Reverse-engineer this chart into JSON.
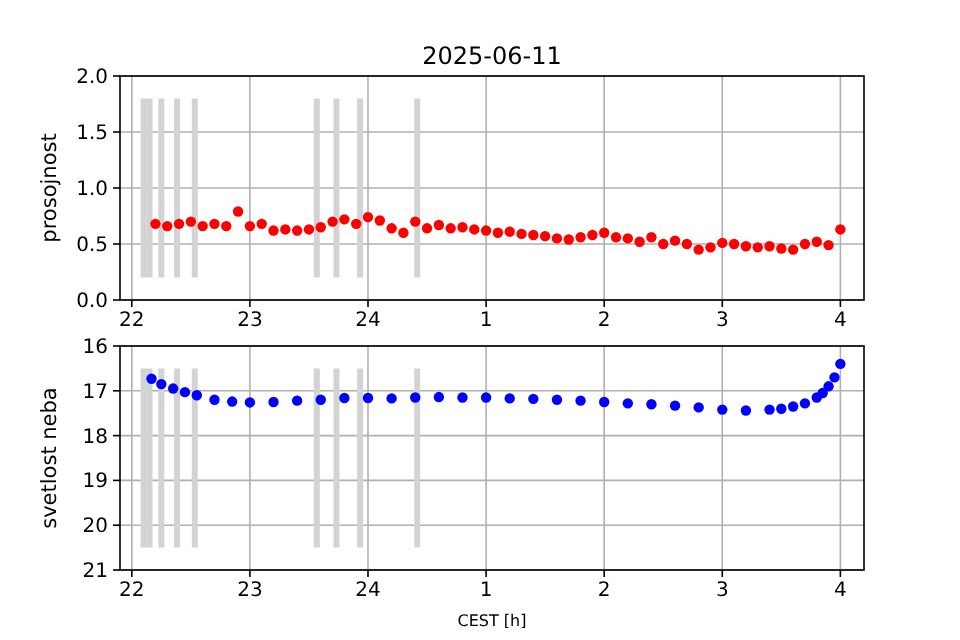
{
  "chart_data": [
    {
      "type": "scatter",
      "title": "2025-06-11",
      "ylabel": "prosojnost",
      "marker": "circle",
      "grid": true,
      "xlim": [
        "2025-06-10T21:54",
        "2025-06-11T04:12"
      ],
      "ylim": [
        0,
        2
      ],
      "xticks": [
        {
          "value": "2025-06-10T22:00",
          "label": "22"
        },
        {
          "value": "2025-06-10T23:00",
          "label": "23"
        },
        {
          "value": "2025-06-11T00:00",
          "label": "24"
        },
        {
          "value": "2025-06-11T01:00",
          "label": "1"
        },
        {
          "value": "2025-06-11T02:00",
          "label": "2"
        },
        {
          "value": "2025-06-11T03:00",
          "label": "3"
        },
        {
          "value": "2025-06-11T04:00",
          "label": "4"
        }
      ],
      "yticks": [
        {
          "value": 0,
          "label": "0.0"
        },
        {
          "value": 0.5,
          "label": "0.5"
        },
        {
          "value": 1,
          "label": "1.0"
        },
        {
          "value": 1.5,
          "label": "1.5"
        },
        {
          "value": 2,
          "label": "2.0"
        }
      ],
      "ref_lines": [
        {
          "axis": "x",
          "value": "2025-06-10T22:06",
          "color": "#d3d3d3"
        },
        {
          "axis": "x",
          "value": "2025-06-10T22:09",
          "color": "#d3d3d3"
        },
        {
          "axis": "x",
          "value": "2025-06-10T22:15",
          "color": "#d3d3d3"
        },
        {
          "axis": "x",
          "value": "2025-06-10T22:23",
          "color": "#d3d3d3"
        },
        {
          "axis": "x",
          "value": "2025-06-10T22:32",
          "color": "#d3d3d3"
        },
        {
          "axis": "x",
          "value": "2025-06-10T23:34",
          "color": "#d3d3d3"
        },
        {
          "axis": "x",
          "value": "2025-06-10T23:44",
          "color": "#d3d3d3"
        },
        {
          "axis": "x",
          "value": "2025-06-10T23:56",
          "color": "#d3d3d3"
        },
        {
          "axis": "x",
          "value": "2025-06-11T00:25",
          "color": "#d3d3d3"
        }
      ],
      "series": [
        {
          "color": "#ff0000",
          "x": [
            "2025-06-10T22:12",
            "2025-06-10T22:18",
            "2025-06-10T22:24",
            "2025-06-10T22:30",
            "2025-06-10T22:36",
            "2025-06-10T22:42",
            "2025-06-10T22:48",
            "2025-06-10T22:54",
            "2025-06-10T23:00",
            "2025-06-10T23:06",
            "2025-06-10T23:12",
            "2025-06-10T23:18",
            "2025-06-10T23:24",
            "2025-06-10T23:30",
            "2025-06-10T23:36",
            "2025-06-10T23:42",
            "2025-06-10T23:48",
            "2025-06-10T23:54",
            "2025-06-11T00:00",
            "2025-06-11T00:06",
            "2025-06-11T00:12",
            "2025-06-11T00:18",
            "2025-06-11T00:24",
            "2025-06-11T00:30",
            "2025-06-11T00:36",
            "2025-06-11T00:42",
            "2025-06-11T00:48",
            "2025-06-11T00:54",
            "2025-06-11T01:00",
            "2025-06-11T01:06",
            "2025-06-11T01:12",
            "2025-06-11T01:18",
            "2025-06-11T01:24",
            "2025-06-11T01:30",
            "2025-06-11T01:36",
            "2025-06-11T01:42",
            "2025-06-11T01:48",
            "2025-06-11T01:54",
            "2025-06-11T02:00",
            "2025-06-11T02:06",
            "2025-06-11T02:12",
            "2025-06-11T02:18",
            "2025-06-11T02:24",
            "2025-06-11T02:30",
            "2025-06-11T02:36",
            "2025-06-11T02:42",
            "2025-06-11T02:48",
            "2025-06-11T02:54",
            "2025-06-11T03:00",
            "2025-06-11T03:06",
            "2025-06-11T03:12",
            "2025-06-11T03:18",
            "2025-06-11T03:24",
            "2025-06-11T03:30",
            "2025-06-11T03:36",
            "2025-06-11T03:42",
            "2025-06-11T03:48",
            "2025-06-11T03:54",
            "2025-06-11T04:00"
          ],
          "values": [
            0.68,
            0.66,
            0.68,
            0.7,
            0.66,
            0.68,
            0.66,
            0.79,
            0.66,
            0.68,
            0.62,
            0.63,
            0.62,
            0.63,
            0.65,
            0.7,
            0.72,
            0.68,
            0.74,
            0.71,
            0.64,
            0.6,
            0.7,
            0.64,
            0.67,
            0.64,
            0.65,
            0.63,
            0.62,
            0.6,
            0.61,
            0.59,
            0.58,
            0.57,
            0.55,
            0.54,
            0.56,
            0.58,
            0.6,
            0.56,
            0.55,
            0.52,
            0.56,
            0.5,
            0.53,
            0.5,
            0.45,
            0.47,
            0.51,
            0.5,
            0.48,
            0.47,
            0.48,
            0.46,
            0.45,
            0.5,
            0.52,
            0.49,
            0.63
          ]
        }
      ]
    },
    {
      "type": "scatter",
      "xlabel": "CEST [h]",
      "ylabel": "svetlost neba",
      "marker": "circle",
      "grid": true,
      "xlim": [
        "2025-06-10T21:54",
        "2025-06-11T04:12"
      ],
      "ylim": [
        21,
        16
      ],
      "xticks": [
        {
          "value": "2025-06-10T22:00",
          "label": "22"
        },
        {
          "value": "2025-06-10T23:00",
          "label": "23"
        },
        {
          "value": "2025-06-11T00:00",
          "label": "24"
        },
        {
          "value": "2025-06-11T01:00",
          "label": "1"
        },
        {
          "value": "2025-06-11T02:00",
          "label": "2"
        },
        {
          "value": "2025-06-11T03:00",
          "label": "3"
        },
        {
          "value": "2025-06-11T04:00",
          "label": "4"
        }
      ],
      "yticks": [
        16,
        17,
        18,
        19,
        20,
        21
      ],
      "ref_lines": [
        {
          "axis": "x",
          "value": "2025-06-10T22:06",
          "color": "#d3d3d3"
        },
        {
          "axis": "x",
          "value": "2025-06-10T22:09",
          "color": "#d3d3d3"
        },
        {
          "axis": "x",
          "value": "2025-06-10T22:15",
          "color": "#d3d3d3"
        },
        {
          "axis": "x",
          "value": "2025-06-10T22:23",
          "color": "#d3d3d3"
        },
        {
          "axis": "x",
          "value": "2025-06-10T22:32",
          "color": "#d3d3d3"
        },
        {
          "axis": "x",
          "value": "2025-06-10T23:34",
          "color": "#d3d3d3"
        },
        {
          "axis": "x",
          "value": "2025-06-10T23:44",
          "color": "#d3d3d3"
        },
        {
          "axis": "x",
          "value": "2025-06-10T23:56",
          "color": "#d3d3d3"
        },
        {
          "axis": "x",
          "value": "2025-06-11T00:25",
          "color": "#d3d3d3"
        }
      ],
      "series": [
        {
          "color": "#0000ff",
          "x": [
            "2025-06-10T22:10",
            "2025-06-10T22:15",
            "2025-06-10T22:21",
            "2025-06-10T22:27",
            "2025-06-10T22:33",
            "2025-06-10T22:42",
            "2025-06-10T22:51",
            "2025-06-10T23:00",
            "2025-06-10T23:12",
            "2025-06-10T23:24",
            "2025-06-10T23:36",
            "2025-06-10T23:48",
            "2025-06-11T00:00",
            "2025-06-11T00:12",
            "2025-06-11T00:24",
            "2025-06-11T00:36",
            "2025-06-11T00:48",
            "2025-06-11T01:00",
            "2025-06-11T01:12",
            "2025-06-11T01:24",
            "2025-06-11T01:36",
            "2025-06-11T01:48",
            "2025-06-11T02:00",
            "2025-06-11T02:12",
            "2025-06-11T02:24",
            "2025-06-11T02:36",
            "2025-06-11T02:48",
            "2025-06-11T03:00",
            "2025-06-11T03:12",
            "2025-06-11T03:24",
            "2025-06-11T03:30",
            "2025-06-11T03:36",
            "2025-06-11T03:42",
            "2025-06-11T03:48",
            "2025-06-11T03:51",
            "2025-06-11T03:54",
            "2025-06-11T03:57",
            "2025-06-11T04:00"
          ],
          "values": [
            16.73,
            16.85,
            16.95,
            17.03,
            17.1,
            17.2,
            17.24,
            17.26,
            17.25,
            17.22,
            17.2,
            17.16,
            17.16,
            17.17,
            17.15,
            17.14,
            17.15,
            17.15,
            17.17,
            17.18,
            17.2,
            17.22,
            17.25,
            17.28,
            17.3,
            17.33,
            17.37,
            17.42,
            17.44,
            17.42,
            17.4,
            17.35,
            17.28,
            17.15,
            17.05,
            16.9,
            16.7,
            16.4
          ]
        }
      ]
    }
  ]
}
